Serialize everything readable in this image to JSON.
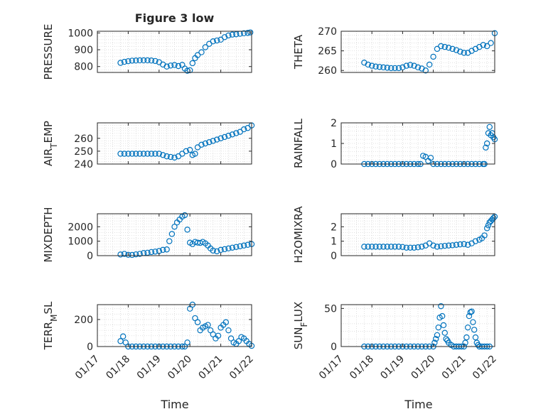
{
  "figure": {
    "x_label": "Time",
    "x_ticks": [
      "01/17",
      "01/18",
      "01/19",
      "01/20",
      "01/21",
      "01/22"
    ],
    "marker_color": "#0072BD",
    "grid_color": "#d9d9d9"
  },
  "chart_data": [
    {
      "type": "scatter",
      "title": "Figure 3 low",
      "ylabel": "PRESSURE",
      "ylim": [
        765,
        1010
      ],
      "y_ticks": [
        "800",
        "900",
        "1000"
      ],
      "x_ticks": [],
      "xlim": [
        "01/17",
        "01/22"
      ],
      "x": [
        "01/17 18:00",
        "01/17 21:00",
        "01/18 00:00",
        "01/18 03:00",
        "01/18 06:00",
        "01/18 09:00",
        "01/18 12:00",
        "01/18 15:00",
        "01/18 18:00",
        "01/18 21:00",
        "01/19 00:00",
        "01/19 03:00",
        "01/19 06:00",
        "01/19 09:00",
        "01/19 12:00",
        "01/19 15:00",
        "01/19 18:00",
        "01/19 20:00",
        "01/19 22:00",
        "01/20 00:00",
        "01/20 02:00",
        "01/20 04:00",
        "01/20 06:00",
        "01/20 09:00",
        "01/20 12:00",
        "01/20 15:00",
        "01/20 18:00",
        "01/20 21:00",
        "01/21 00:00",
        "01/21 03:00",
        "01/21 06:00",
        "01/21 09:00",
        "01/21 12:00",
        "01/21 15:00",
        "01/21 18:00",
        "01/21 21:00",
        "01/21 23:00"
      ],
      "y": [
        822,
        828,
        832,
        835,
        836,
        837,
        837,
        837,
        836,
        833,
        826,
        812,
        800,
        806,
        809,
        803,
        810,
        788,
        775,
        778,
        820,
        850,
        868,
        885,
        915,
        935,
        950,
        955,
        960,
        975,
        985,
        990,
        992,
        995,
        998,
        1000,
        1003
      ]
    },
    {
      "type": "scatter",
      "ylabel": "THETA",
      "ylim": [
        259.5,
        270
      ],
      "y_ticks": [
        "260",
        "265",
        "270"
      ],
      "x_ticks": [],
      "xlim": [
        "01/17",
        "01/22"
      ],
      "x": [
        "01/17 18:00",
        "01/17 21:00",
        "01/18 00:00",
        "01/18 03:00",
        "01/18 06:00",
        "01/18 09:00",
        "01/18 12:00",
        "01/18 15:00",
        "01/18 18:00",
        "01/18 21:00",
        "01/19 00:00",
        "01/19 03:00",
        "01/19 06:00",
        "01/19 09:00",
        "01/19 12:00",
        "01/19 15:00",
        "01/19 18:00",
        "01/19 21:00",
        "01/20 00:00",
        "01/20 03:00",
        "01/20 06:00",
        "01/20 09:00",
        "01/20 12:00",
        "01/20 15:00",
        "01/20 18:00",
        "01/20 21:00",
        "01/21 00:00",
        "01/21 03:00",
        "01/21 06:00",
        "01/21 09:00",
        "01/21 12:00",
        "01/21 15:00",
        "01/21 18:00",
        "01/21 21:00",
        "01/22 00:00"
      ],
      "y": [
        262.0,
        261.5,
        261.2,
        261.0,
        260.9,
        260.8,
        260.7,
        260.6,
        260.6,
        260.6,
        260.8,
        261.2,
        261.4,
        261.2,
        260.8,
        260.5,
        260.0,
        261.5,
        263.5,
        265.5,
        266.2,
        266.0,
        265.8,
        265.5,
        265.2,
        264.8,
        264.5,
        264.5,
        265.0,
        265.5,
        266.0,
        266.5,
        266.2,
        267.0,
        269.5
      ]
    },
    {
      "type": "scatter",
      "ylabel": "AIR_TEMP",
      "ylim": [
        240,
        272
      ],
      "y_ticks": [
        "240",
        "250",
        "260"
      ],
      "x_ticks": [],
      "xlim": [
        "01/17",
        "01/22"
      ],
      "x": [
        "01/17 18:00",
        "01/17 21:00",
        "01/18 00:00",
        "01/18 03:00",
        "01/18 06:00",
        "01/18 09:00",
        "01/18 12:00",
        "01/18 15:00",
        "01/18 18:00",
        "01/18 21:00",
        "01/19 00:00",
        "01/19 03:00",
        "01/19 06:00",
        "01/19 09:00",
        "01/19 12:00",
        "01/19 15:00",
        "01/19 18:00",
        "01/19 21:00",
        "01/20 00:00",
        "01/20 02:00",
        "01/20 04:00",
        "01/20 06:00",
        "01/20 09:00",
        "01/20 12:00",
        "01/20 15:00",
        "01/20 18:00",
        "01/20 21:00",
        "01/21 00:00",
        "01/21 03:00",
        "01/21 06:00",
        "01/21 09:00",
        "01/21 12:00",
        "01/21 15:00",
        "01/21 18:00",
        "01/21 21:00",
        "01/22 00:00"
      ],
      "y": [
        248,
        248,
        248,
        248,
        248,
        248,
        248,
        248,
        248,
        248,
        248,
        247,
        246,
        245.5,
        245,
        246,
        248,
        250,
        251,
        247,
        248,
        253,
        255,
        256,
        257,
        258,
        259,
        260,
        261,
        262,
        263,
        264,
        265,
        267,
        268,
        270
      ]
    },
    {
      "type": "scatter",
      "ylabel": "RAINFALL",
      "ylim": [
        0,
        2
      ],
      "y_ticks": [
        "0",
        "1",
        "2"
      ],
      "x_ticks": [],
      "xlim": [
        "01/17",
        "01/22"
      ],
      "x": [
        "01/17 18:00",
        "01/17 21:00",
        "01/18 00:00",
        "01/18 03:00",
        "01/18 06:00",
        "01/18 09:00",
        "01/18 12:00",
        "01/18 15:00",
        "01/18 18:00",
        "01/18 21:00",
        "01/19 00:00",
        "01/19 03:00",
        "01/19 06:00",
        "01/19 09:00",
        "01/19 12:00",
        "01/19 14:00",
        "01/19 16:00",
        "01/19 18:00",
        "01/19 20:00",
        "01/19 22:00",
        "01/20 00:00",
        "01/20 03:00",
        "01/20 06:00",
        "01/20 09:00",
        "01/20 12:00",
        "01/20 15:00",
        "01/20 18:00",
        "01/20 21:00",
        "01/21 00:00",
        "01/21 03:00",
        "01/21 06:00",
        "01/21 09:00",
        "01/21 12:00",
        "01/21 15:00",
        "01/21 16:00",
        "01/21 17:00",
        "01/21 18:00",
        "01/21 19:00",
        "01/21 20:00",
        "01/21 21:00",
        "01/21 22:00",
        "01/21 23:00",
        "01/22 00:00"
      ],
      "y": [
        0,
        0,
        0,
        0,
        0,
        0,
        0,
        0,
        0,
        0,
        0,
        0,
        0,
        0,
        0,
        0,
        0.4,
        0.35,
        0.15,
        0.3,
        0,
        0,
        0,
        0,
        0,
        0,
        0,
        0,
        0,
        0,
        0,
        0,
        0,
        0,
        0,
        0.8,
        1.0,
        1.5,
        1.8,
        1.4,
        1.5,
        1.3,
        1.2
      ]
    },
    {
      "type": "scatter",
      "ylabel": "MIXDEPTH",
      "ylim": [
        0,
        2900
      ],
      "y_ticks": [
        "0",
        "1000",
        "2000"
      ],
      "x_ticks": [],
      "xlim": [
        "01/17",
        "01/22"
      ],
      "x": [
        "01/17 18:00",
        "01/17 21:00",
        "01/18 00:00",
        "01/18 03:00",
        "01/18 06:00",
        "01/18 09:00",
        "01/18 12:00",
        "01/18 15:00",
        "01/18 18:00",
        "01/18 21:00",
        "01/19 00:00",
        "01/19 03:00",
        "01/19 06:00",
        "01/19 08:00",
        "01/19 10:00",
        "01/19 12:00",
        "01/19 14:00",
        "01/19 16:00",
        "01/19 18:00",
        "01/19 20:00",
        "01/19 22:00",
        "01/20 00:00",
        "01/20 02:00",
        "01/20 04:00",
        "01/20 06:00",
        "01/20 08:00",
        "01/20 10:00",
        "01/20 12:00",
        "01/20 14:00",
        "01/20 16:00",
        "01/20 18:00",
        "01/20 21:00",
        "01/21 00:00",
        "01/21 03:00",
        "01/21 06:00",
        "01/21 09:00",
        "01/21 12:00",
        "01/21 15:00",
        "01/21 18:00",
        "01/21 21:00",
        "01/22 00:00"
      ],
      "y": [
        80,
        120,
        60,
        50,
        90,
        120,
        180,
        200,
        250,
        280,
        320,
        400,
        430,
        1000,
        1500,
        2000,
        2300,
        2500,
        2700,
        2800,
        1800,
        900,
        800,
        950,
        900,
        880,
        950,
        850,
        700,
        500,
        350,
        300,
        400,
        450,
        500,
        550,
        600,
        650,
        700,
        750,
        800
      ]
    },
    {
      "type": "scatter",
      "ylabel": "H2OMIXRA",
      "ylim": [
        0,
        2.9
      ],
      "y_ticks": [
        "0",
        "1",
        "2"
      ],
      "x_ticks": [],
      "xlim": [
        "01/17",
        "01/22"
      ],
      "x": [
        "01/17 18:00",
        "01/17 21:00",
        "01/18 00:00",
        "01/18 03:00",
        "01/18 06:00",
        "01/18 09:00",
        "01/18 12:00",
        "01/18 15:00",
        "01/18 18:00",
        "01/18 21:00",
        "01/19 00:00",
        "01/19 03:00",
        "01/19 06:00",
        "01/19 09:00",
        "01/19 12:00",
        "01/19 15:00",
        "01/19 18:00",
        "01/19 21:00",
        "01/20 00:00",
        "01/20 03:00",
        "01/20 06:00",
        "01/20 09:00",
        "01/20 12:00",
        "01/20 15:00",
        "01/20 18:00",
        "01/20 21:00",
        "01/21 00:00",
        "01/21 03:00",
        "01/21 06:00",
        "01/21 09:00",
        "01/21 12:00",
        "01/21 14:00",
        "01/21 16:00",
        "01/21 18:00",
        "01/21 19:00",
        "01/21 20:00",
        "01/21 21:00",
        "01/21 22:00",
        "01/21 23:00",
        "01/22 00:00"
      ],
      "y": [
        0.62,
        0.62,
        0.62,
        0.62,
        0.62,
        0.62,
        0.62,
        0.62,
        0.62,
        0.62,
        0.6,
        0.55,
        0.55,
        0.55,
        0.58,
        0.62,
        0.7,
        0.85,
        0.7,
        0.62,
        0.65,
        0.68,
        0.7,
        0.72,
        0.75,
        0.78,
        0.8,
        0.75,
        0.85,
        1.0,
        1.1,
        1.2,
        1.4,
        1.9,
        2.1,
        2.3,
        2.4,
        2.5,
        2.6,
        2.7
      ]
    },
    {
      "type": "scatter",
      "ylabel": "TERR_MSL",
      "ylim": [
        0,
        310
      ],
      "y_ticks": [
        "0",
        "200"
      ],
      "x_ticks": [
        "01/17",
        "01/18",
        "01/19",
        "01/20",
        "01/21",
        "01/22"
      ],
      "xlim": [
        "01/17",
        "01/22"
      ],
      "x": [
        "01/17 18:00",
        "01/17 20:00",
        "01/17 22:00",
        "01/18 00:00",
        "01/18 03:00",
        "01/18 06:00",
        "01/18 09:00",
        "01/18 12:00",
        "01/18 15:00",
        "01/18 18:00",
        "01/18 21:00",
        "01/19 00:00",
        "01/19 03:00",
        "01/19 06:00",
        "01/19 09:00",
        "01/19 12:00",
        "01/19 15:00",
        "01/19 18:00",
        "01/19 20:00",
        "01/19 22:00",
        "01/20 00:00",
        "01/20 02:00",
        "01/20 04:00",
        "01/20 06:00",
        "01/20 08:00",
        "01/20 10:00",
        "01/20 12:00",
        "01/20 14:00",
        "01/20 16:00",
        "01/20 18:00",
        "01/20 20:00",
        "01/20 22:00",
        "01/21 00:00",
        "01/21 02:00",
        "01/21 04:00",
        "01/21 06:00",
        "01/21 08:00",
        "01/21 10:00",
        "01/21 12:00",
        "01/21 14:00",
        "01/21 16:00",
        "01/21 18:00",
        "01/21 20:00",
        "01/21 22:00",
        "01/22 00:00"
      ],
      "y": [
        40,
        75,
        30,
        0,
        0,
        0,
        0,
        0,
        0,
        0,
        0,
        0,
        0,
        0,
        0,
        0,
        0,
        0,
        0,
        30,
        280,
        310,
        210,
        180,
        120,
        140,
        150,
        160,
        120,
        90,
        60,
        80,
        140,
        160,
        180,
        120,
        60,
        30,
        20,
        40,
        70,
        60,
        40,
        20,
        5
      ]
    },
    {
      "type": "scatter",
      "ylabel": "SUN_FLUX",
      "ylim": [
        0,
        55
      ],
      "y_ticks": [
        "0",
        "50"
      ],
      "x_ticks": [
        "01/17",
        "01/18",
        "01/19",
        "01/20",
        "01/21",
        "01/22"
      ],
      "xlim": [
        "01/17",
        "01/22"
      ],
      "x": [
        "01/17 18:00",
        "01/17 21:00",
        "01/18 00:00",
        "01/18 03:00",
        "01/18 06:00",
        "01/18 09:00",
        "01/18 12:00",
        "01/18 15:00",
        "01/18 18:00",
        "01/18 21:00",
        "01/19 00:00",
        "01/19 03:00",
        "01/19 06:00",
        "01/19 09:00",
        "01/19 12:00",
        "01/19 15:00",
        "01/19 18:00",
        "01/19 21:00",
        "01/20 00:00",
        "01/20 01:00",
        "01/20 02:00",
        "01/20 03:00",
        "01/20 04:00",
        "01/20 05:00",
        "01/20 06:00",
        "01/20 07:00",
        "01/20 08:00",
        "01/20 09:00",
        "01/20 10:00",
        "01/20 11:00",
        "01/20 12:00",
        "01/20 14:00",
        "01/20 16:00",
        "01/20 18:00",
        "01/20 20:00",
        "01/20 22:00",
        "01/21 00:00",
        "01/21 01:00",
        "01/21 02:00",
        "01/21 03:00",
        "01/21 04:00",
        "01/21 05:00",
        "01/21 06:00",
        "01/21 07:00",
        "01/21 08:00",
        "01/21 09:00",
        "01/21 10:00",
        "01/21 11:00",
        "01/21 12:00",
        "01/21 14:00",
        "01/21 16:00",
        "01/21 18:00",
        "01/21 20:00"
      ],
      "y": [
        0,
        0,
        0,
        0,
        0,
        0,
        0,
        0,
        0,
        0,
        0,
        0,
        0,
        0,
        0,
        0,
        0,
        0,
        0,
        5,
        10,
        15,
        25,
        38,
        53,
        40,
        28,
        18,
        10,
        8,
        5,
        2,
        0,
        0,
        0,
        0,
        0,
        5,
        12,
        25,
        40,
        45,
        46,
        32,
        22,
        12,
        5,
        2,
        0,
        0,
        0,
        0,
        0
      ]
    }
  ]
}
